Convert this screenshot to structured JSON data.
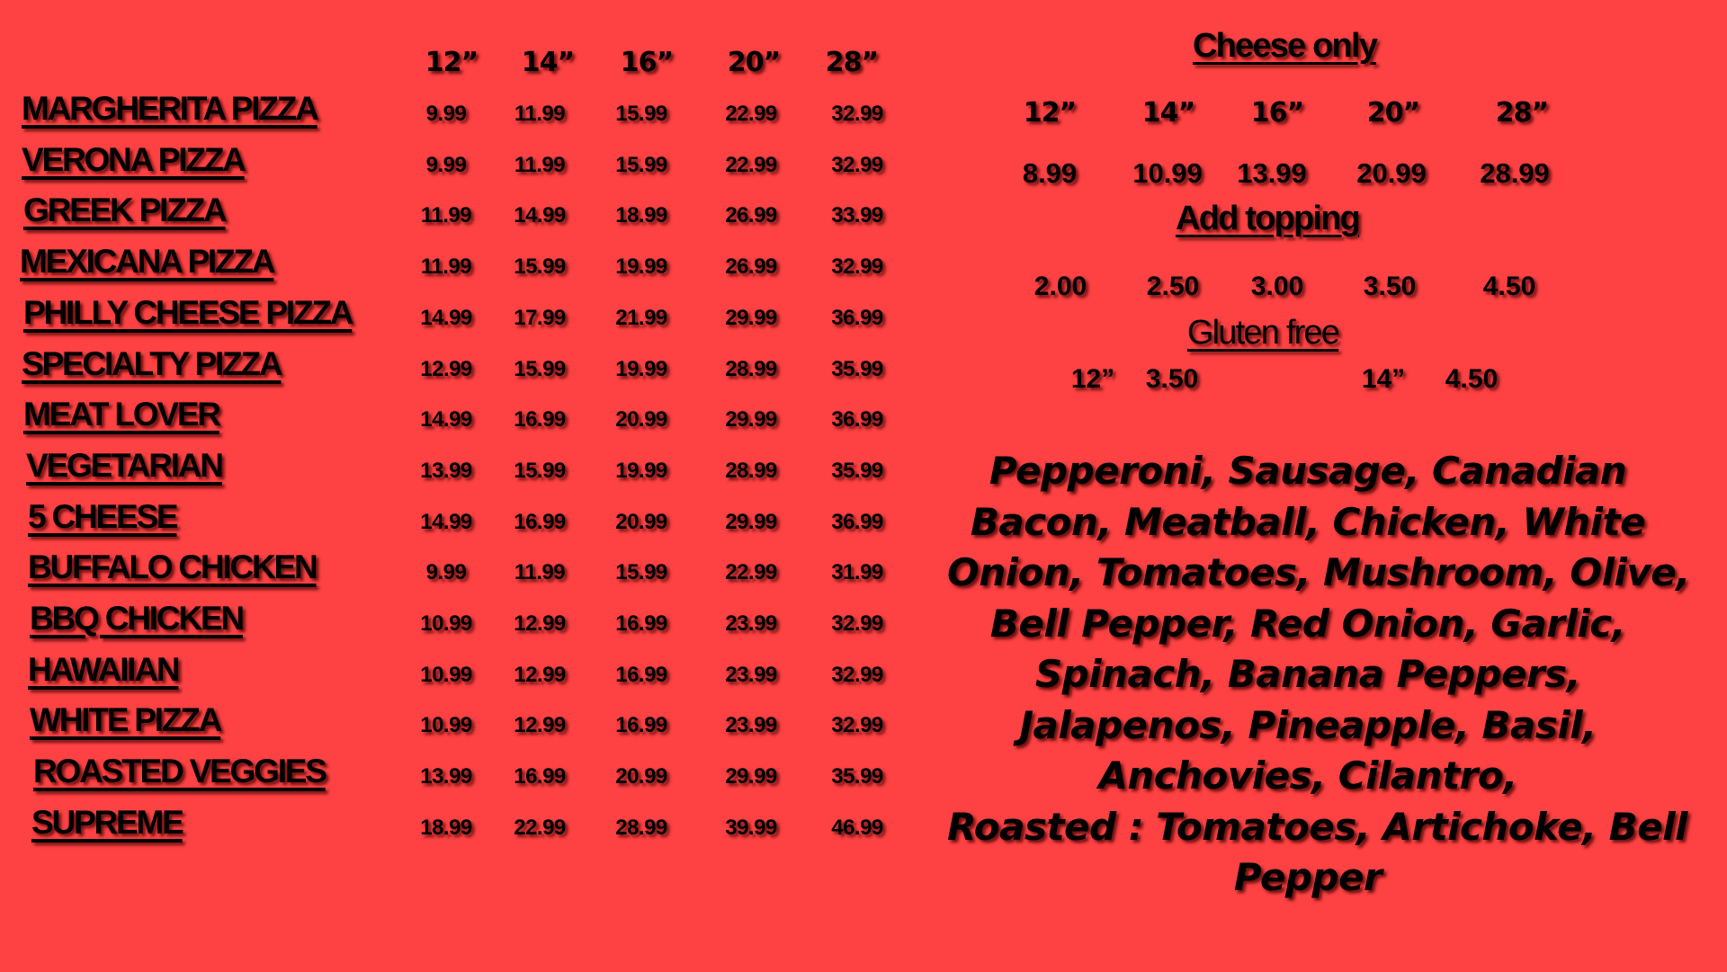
{
  "background_color": "#fe4142",
  "sizes": [
    "12”",
    "14”",
    "16”",
    "20”",
    "28”"
  ],
  "menu": [
    {
      "name": "MARGHERITA PIZZA",
      "prices": [
        "9.99",
        "11.99",
        "15.99",
        "22.99",
        "32.99"
      ]
    },
    {
      "name": "VERONA PIZZA",
      "prices": [
        "9.99",
        "11.99",
        "15.99",
        "22.99",
        "32.99"
      ]
    },
    {
      "name": "GREEK PIZZA",
      "prices": [
        "11.99",
        "14.99",
        "18.99",
        "26.99",
        "33.99"
      ]
    },
    {
      "name": "MEXICANA PIZZA",
      "prices": [
        "11.99",
        "15.99",
        "19.99",
        "26.99",
        "32.99"
      ]
    },
    {
      "name": "PHILLY CHEESE PIZZA",
      "prices": [
        "14.99",
        "17.99",
        "21.99",
        "29.99",
        "36.99"
      ]
    },
    {
      "name": "SPECIALTY PIZZA",
      "prices": [
        "12.99",
        "15.99",
        "19.99",
        "28.99",
        "35.99"
      ]
    },
    {
      "name": "MEAT LOVER",
      "prices": [
        "14.99",
        "16.99",
        "20.99",
        "29.99",
        "36.99"
      ]
    },
    {
      "name": "VEGETARIAN",
      "prices": [
        "13.99",
        "15.99",
        "19.99",
        "28.99",
        "35.99"
      ]
    },
    {
      "name": "5 CHEESE",
      "prices": [
        "14.99",
        "16.99",
        "20.99",
        "29.99",
        "36.99"
      ]
    },
    {
      "name": "BUFFALO CHICKEN",
      "prices": [
        "9.99",
        "11.99",
        "15.99",
        "22.99",
        "31.99"
      ]
    },
    {
      "name": "BBQ CHICKEN",
      "prices": [
        "10.99",
        "12.99",
        "16.99",
        "23.99",
        "32.99"
      ]
    },
    {
      "name": "HAWAIIAN",
      "prices": [
        "10.99",
        "12.99",
        "16.99",
        "23.99",
        "32.99"
      ]
    },
    {
      "name": "WHITE PIZZA",
      "prices": [
        "10.99",
        "12.99",
        "16.99",
        "23.99",
        "32.99"
      ]
    },
    {
      "name": "ROASTED VEGGIES",
      "prices": [
        "13.99",
        "16.99",
        "20.99",
        "29.99",
        "35.99"
      ]
    },
    {
      "name": "SUPREME",
      "prices": [
        "18.99",
        "22.99",
        "28.99",
        "39.99",
        "46.99"
      ]
    }
  ],
  "cheese_only": {
    "title": "Cheese only",
    "sizes": [
      "12”",
      "14”",
      "16”",
      "20”",
      "28”"
    ],
    "prices": [
      "8.99",
      "10.99",
      "13.99",
      "20.99",
      "28.99"
    ]
  },
  "add_topping": {
    "title": "Add topping",
    "prices": [
      "2.00",
      "2.50",
      "3.00",
      "3.50",
      "4.50"
    ]
  },
  "gluten_free": {
    "title": "Gluten free",
    "options": [
      {
        "size": "12”",
        "price": "3.50"
      },
      {
        "size": "14”",
        "price": "4.50"
      }
    ]
  },
  "toppings_lines": [
    "Pepperoni, Sausage, Canadian",
    "Bacon, Meatball, Chicken, White",
    "Onion, Tomatoes, Mushroom, Olive,",
    "Bell Pepper, Red Onion, Garlic,",
    "Spinach, Banana Peppers,",
    "Jalapenos, Pineapple, Basil,",
    "Anchovies, Cilantro,",
    "Roasted : Tomatoes, Artichoke, Bell",
    "Pepper"
  ]
}
